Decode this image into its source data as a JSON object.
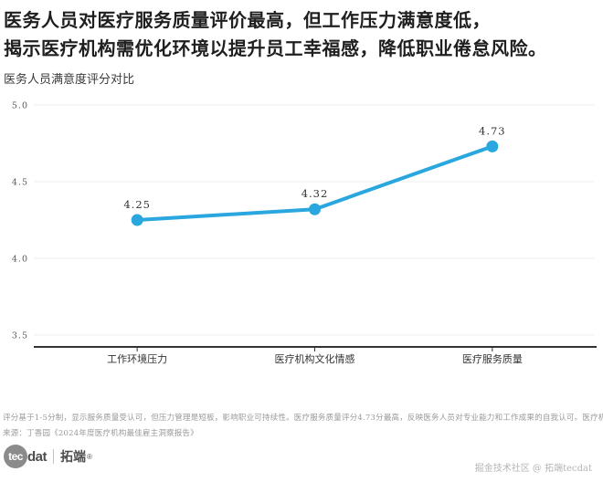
{
  "page": {
    "title_line1": "医务人员对医疗服务质量评价最高，但工作压力满意度低，",
    "title_line2": "揭示医疗机构需优化环境以提升员工幸福感，降低职业倦怠风险。"
  },
  "chart_data": {
    "type": "line",
    "title": "医务人员满意度评分对比",
    "categories": [
      "工作环境压力",
      "医疗机构文化情感",
      "医疗服务质量"
    ],
    "values": [
      4.25,
      4.32,
      4.73
    ],
    "data_labels": [
      "4.25",
      "4.32",
      "4.73"
    ],
    "xlabel": "",
    "ylabel": "",
    "ylim": [
      3.5,
      5.0
    ],
    "yticks": [
      5.0,
      4.5,
      4.0,
      3.5
    ],
    "ytick_labels": [
      "5.0",
      "4.5",
      "4.0",
      "3.5"
    ],
    "grid": true,
    "legend": false,
    "line_color": "#2AA7DE",
    "point_color": "#2AA7DE",
    "grid_color": "#ececec",
    "axis_color": "#333333",
    "tick_label_color": "#555555",
    "data_label_color": "#333333",
    "category_label_color": "#333333"
  },
  "footnotes": {
    "line1": "评分基于1-5分制，显示服务质量受认可，但压力管理是短板，影响职业可持续性。医疗服务质量评分4.73分最高，反映医务人员对专业能力和工作成果的自我认可。医疗机构文化情感",
    "source": "来源：丁香园《2024年度医疗机构最佳雇主洞察报告》"
  },
  "footer": {
    "logo_circle_text": "tec",
    "logo_text": "dat",
    "logo_cn": "拓端",
    "logo_reg": "®",
    "credit": "掘金技术社区 @ 拓端tecdat"
  }
}
